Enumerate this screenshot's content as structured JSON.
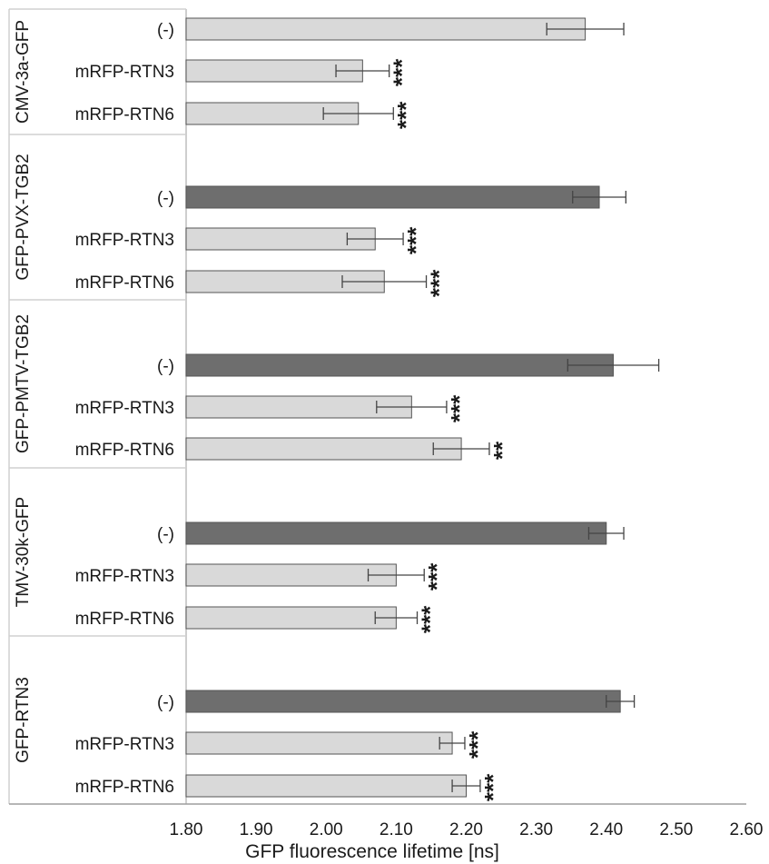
{
  "chart_data": {
    "type": "bar",
    "orientation": "horizontal",
    "xlabel": "GFP fluorescence lifetime [ns]",
    "xlim": [
      1.8,
      2.6
    ],
    "xticks": [
      "1.80",
      "1.90",
      "2.00",
      "2.10",
      "2.20",
      "2.30",
      "2.40",
      "2.50",
      "2.60"
    ],
    "grid": false,
    "colors": {
      "control": "#6e6e6e",
      "treatment": "#d9d9d9",
      "control_first_group": "#d9d9d9",
      "border": "#555555"
    },
    "groups": [
      {
        "name": "CMV-3a-GFP",
        "bars": [
          {
            "label": "(-)",
            "value": 2.37,
            "error": 0.055,
            "sig": ""
          },
          {
            "label": "mRFP-RTN3",
            "value": 2.052,
            "error": 0.038,
            "sig": "***"
          },
          {
            "label": "mRFP-RTN6",
            "value": 2.046,
            "error": 0.05,
            "sig": "***"
          }
        ]
      },
      {
        "name": "GFP-PVX-TGB2",
        "bars": [
          {
            "label": "(-)",
            "value": 2.39,
            "error": 0.038,
            "sig": ""
          },
          {
            "label": "mRFP-RTN3",
            "value": 2.07,
            "error": 0.04,
            "sig": "***"
          },
          {
            "label": "mRFP-RTN6",
            "value": 2.083,
            "error": 0.06,
            "sig": "***"
          }
        ]
      },
      {
        "name": "GFP-PMTV-TGB2",
        "bars": [
          {
            "label": "(-)",
            "value": 2.41,
            "error": 0.065,
            "sig": ""
          },
          {
            "label": "mRFP-RTN3",
            "value": 2.122,
            "error": 0.05,
            "sig": "***"
          },
          {
            "label": "mRFP-RTN6",
            "value": 2.193,
            "error": 0.04,
            "sig": "**"
          }
        ]
      },
      {
        "name": "TMV-30k-GFP",
        "bars": [
          {
            "label": "(-)",
            "value": 2.4,
            "error": 0.025,
            "sig": ""
          },
          {
            "label": "mRFP-RTN3",
            "value": 2.1,
            "error": 0.04,
            "sig": "***"
          },
          {
            "label": "mRFP-RTN6",
            "value": 2.1,
            "error": 0.03,
            "sig": "***"
          }
        ]
      },
      {
        "name": "GFP-RTN3",
        "bars": [
          {
            "label": "(-)",
            "value": 2.42,
            "error": 0.02,
            "sig": ""
          },
          {
            "label": "mRFP-RTN3",
            "value": 2.18,
            "error": 0.018,
            "sig": "***"
          },
          {
            "label": "mRFP-RTN6",
            "value": 2.2,
            "error": 0.02,
            "sig": "***"
          }
        ]
      }
    ]
  }
}
